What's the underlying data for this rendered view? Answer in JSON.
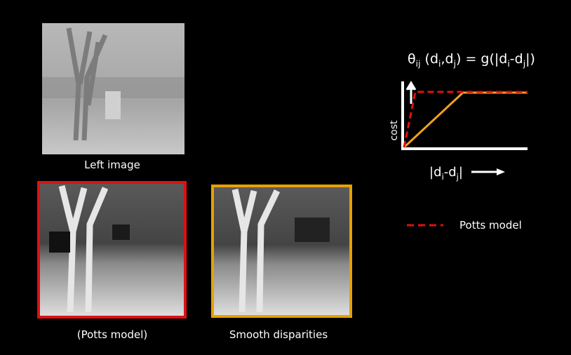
{
  "images": {
    "left": {
      "caption": "Left image"
    },
    "potts": {
      "caption": "(Potts model)"
    },
    "smooth": {
      "caption": "Smooth disparities"
    }
  },
  "graph": {
    "formula": [
      "θ",
      "ij",
      " (d",
      "i",
      ",d",
      "j",
      ") = g(|d",
      "i",
      "-d",
      "j",
      "|)"
    ],
    "y_axis_label": "cost",
    "x_axis_label": [
      "|d",
      "i",
      "-d",
      "j",
      "|"
    ],
    "legend": "Potts model"
  }
}
